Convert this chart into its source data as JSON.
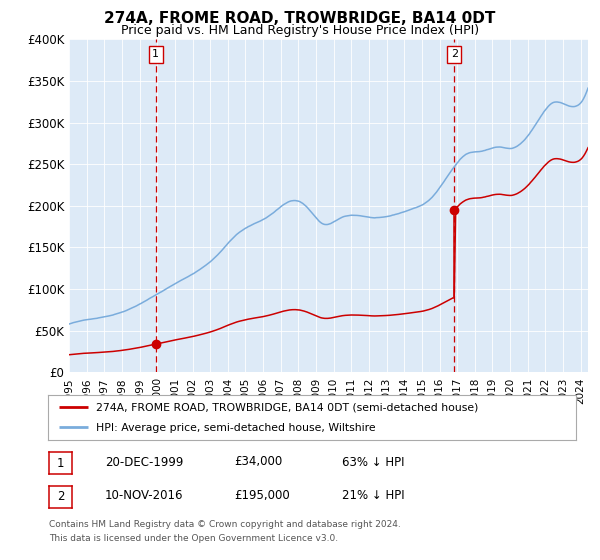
{
  "title": "274A, FROME ROAD, TROWBRIDGE, BA14 0DT",
  "subtitle": "Price paid vs. HM Land Registry's House Price Index (HPI)",
  "property_line_label": "274A, FROME ROAD, TROWBRIDGE, BA14 0DT (semi-detached house)",
  "hpi_line_label": "HPI: Average price, semi-detached house, Wiltshire",
  "property_color": "#cc0000",
  "hpi_color": "#7aacdc",
  "bg_color": "#ddeaf7",
  "point1_date": "20-DEC-1999",
  "point1_price": 34000,
  "point2_date": "10-NOV-2016",
  "point2_price": 195000,
  "point1_pct": "63% ↓ HPI",
  "point2_pct": "21% ↓ HPI",
  "ylim_max": 400000,
  "yticks": [
    0,
    50000,
    100000,
    150000,
    200000,
    250000,
    300000,
    350000,
    400000
  ],
  "ytick_labels": [
    "£0",
    "£50K",
    "£100K",
    "£150K",
    "£200K",
    "£250K",
    "£300K",
    "£350K",
    "£400K"
  ],
  "footnote_line1": "Contains HM Land Registry data © Crown copyright and database right 2024.",
  "footnote_line2": "This data is licensed under the Open Government Licence v3.0."
}
